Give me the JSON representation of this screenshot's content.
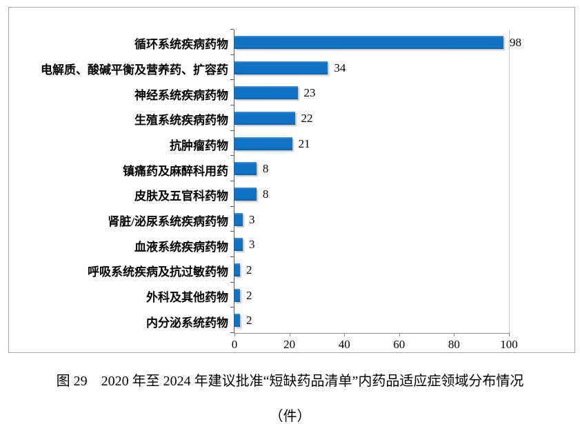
{
  "figure": {
    "caption_line1": "图 29　2020 年至 2024 年建议批准“短缺药品清单”内药品适应症领域分布情况",
    "caption_line2": "（件）"
  },
  "chart_data": {
    "type": "bar",
    "orientation": "horizontal",
    "title": "",
    "xlabel": "",
    "ylabel": "",
    "categories": [
      "循环系统疾病药物",
      "电解质、酸碱平衡及营养药、扩容药",
      "神经系统疾病药物",
      "生殖系统疾病药物",
      "抗肿瘤药物",
      "镇痛药及麻醉科用药",
      "皮肤及五官科药物",
      "肾脏/泌尿系统疾病药物",
      "血液系统疾病药物",
      "呼吸系统疾病及抗过敏药物",
      "外科及其他药物",
      "内分泌系统药物"
    ],
    "values": [
      98,
      34,
      23,
      22,
      21,
      8,
      8,
      3,
      3,
      2,
      2,
      2
    ],
    "data_labels": [
      98,
      34,
      23,
      22,
      21,
      8,
      8,
      3,
      3,
      2,
      2,
      2
    ],
    "xlim": [
      0,
      100
    ],
    "x_ticks": [
      0,
      20,
      40,
      60,
      80,
      100
    ],
    "grid": false,
    "legend": "none",
    "bar_color": "#1272c4"
  }
}
